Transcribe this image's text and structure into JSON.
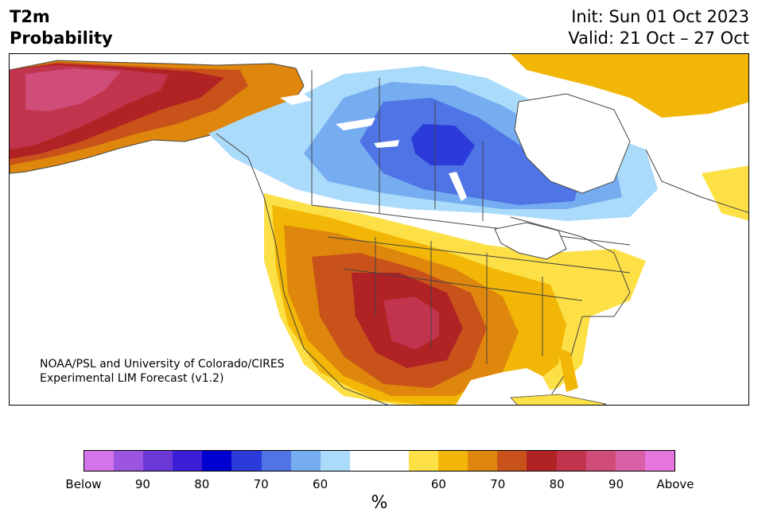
{
  "header": {
    "variable_line1": "T2m",
    "variable_line2": "Probability",
    "init": "Init: Sun 01 Oct 2023",
    "valid": "Valid: 21 Oct – 27 Oct"
  },
  "credit": {
    "line1": "NOAA/PSL and University of Colorado/CIRES",
    "line2": "Experimental LIM Forecast (v1.2)"
  },
  "colorbar": {
    "colors": [
      "#d474ea",
      "#9b55e0",
      "#6b37d6",
      "#3a1fd6",
      "#0000d0",
      "#2a3bd9",
      "#4e74e5",
      "#75adf0",
      "#abdbfb",
      "#ffffff",
      "#ffffff",
      "#fde046",
      "#f2b706",
      "#df870c",
      "#c9521a",
      "#b02224",
      "#c1344e",
      "#d04d7a",
      "#d95fa8",
      "#e675dc"
    ],
    "tick_labels": [
      "Below",
      "90",
      "80",
      "70",
      "60",
      "60",
      "70",
      "80",
      "90",
      "Above"
    ],
    "unit": "%"
  },
  "map": {
    "region": "North America",
    "palette": {
      "ocean": "#ffffff",
      "land": "#ffffff",
      "border": "#444444",
      "cold_60": "#abdbfb",
      "cold_70": "#75adf0",
      "cold_80": "#4e74e5",
      "cold_90": "#2a3bd9",
      "warm_55": "#fde046",
      "warm_60": "#f2b706",
      "warm_65": "#df870c",
      "warm_70": "#c9521a",
      "warm_75": "#b02224",
      "warm_80": "#c1344e",
      "warm_85": "#d04d7a"
    }
  }
}
